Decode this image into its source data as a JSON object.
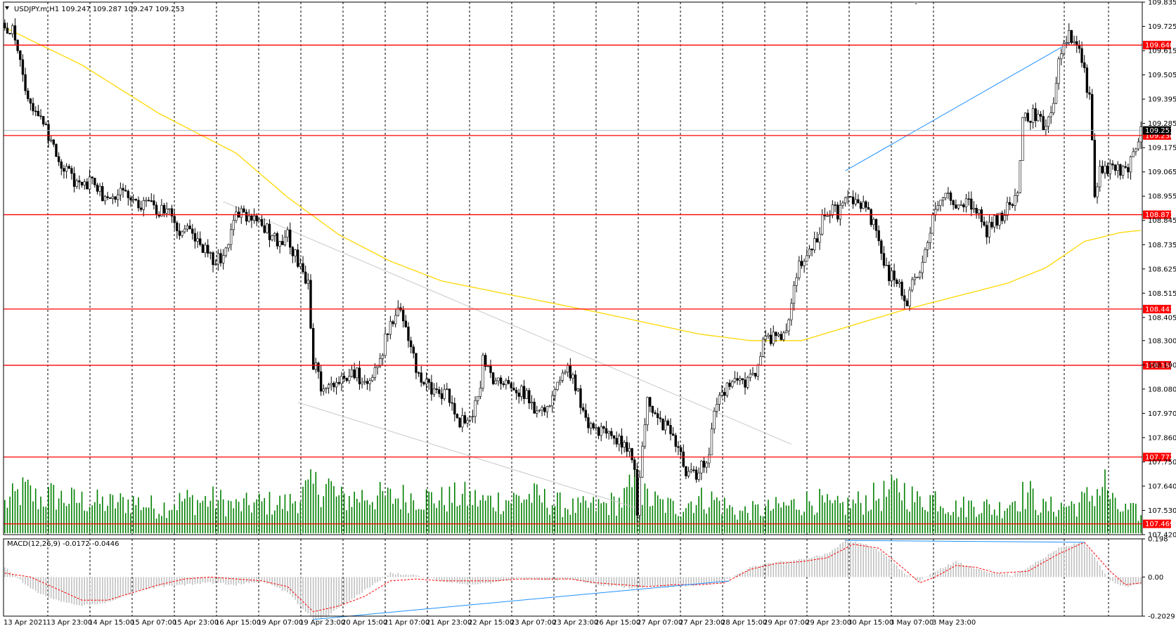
{
  "window": {
    "title": "USDJPY.m,H1  109.247 109.287 109.247 109.253"
  },
  "colors": {
    "grid": "#000000",
    "candle": "#000000",
    "level": "#ff0000",
    "ma": "#ffd700",
    "volume": "#008000",
    "trend": "#1e90ff",
    "channel": "#c8c8c8",
    "macd_hist": "#c0c0c0",
    "macd_signal": "#ff0000",
    "current_price": "#a9b8c8"
  },
  "chart_data": [
    {
      "type": "candlestick",
      "symbol": "USDJPY.m",
      "timeframe": "H1",
      "ohlc_header": "109.247 109.287 109.247 109.253",
      "current_price": 109.253,
      "current_price_label": "109.253",
      "ylim": [
        107.42,
        109.835
      ],
      "y_tick_labels": [
        "109.835",
        "109.725",
        "109.615",
        "109.505",
        "109.395",
        "109.285",
        "109.175",
        "109.065",
        "108.955",
        "108.845",
        "108.735",
        "108.625",
        "108.515",
        "108.405",
        "108.300",
        "108.190",
        "108.080",
        "107.970",
        "107.860",
        "107.750",
        "107.640",
        "107.530",
        "107.420"
      ],
      "x_tick_labels": [
        "13 Apr 2021",
        "13 Apr 23:00",
        "14 Apr 15:00",
        "15 Apr 07:00",
        "15 Apr 23:00",
        "16 Apr 15:00",
        "19 Apr 07:00",
        "19 Apr 23:00",
        "20 Apr 15:00",
        "21 Apr 07:00",
        "21 Apr 23:00",
        "22 Apr 15:00",
        "23 Apr 07:00",
        "23 Apr 23:00",
        "26 Apr 15:00",
        "27 Apr 07:00",
        "27 Apr 23:00",
        "28 Apr 15:00",
        "29 Apr 07:00",
        "29 Apr 23:00",
        "30 Apr 15:00",
        "3 May 07:00",
        "3 May 23:00"
      ],
      "price_levels": [
        {
          "value": 109.64,
          "label": "109.640"
        },
        {
          "value": 109.23,
          "label": "109.230"
        },
        {
          "value": 108.871,
          "label": "108.871"
        },
        {
          "value": 108.443,
          "label": "108.443"
        },
        {
          "value": 108.188,
          "label": "108.188"
        },
        {
          "value": 107.772,
          "label": "107.772"
        },
        {
          "value": 107.469,
          "label": "107.469"
        }
      ],
      "close_path": [
        [
          0,
          109.74
        ],
        [
          4,
          109.68
        ],
        [
          8,
          109.45
        ],
        [
          13,
          109.32
        ],
        [
          18,
          109.2
        ],
        [
          24,
          109.07
        ],
        [
          30,
          108.98
        ],
        [
          34,
          109.02
        ],
        [
          40,
          108.92
        ],
        [
          45,
          108.96
        ],
        [
          52,
          108.92
        ],
        [
          58,
          108.9
        ],
        [
          64,
          108.88
        ],
        [
          68,
          108.8
        ],
        [
          73,
          108.78
        ],
        [
          78,
          108.72
        ],
        [
          82,
          108.66
        ],
        [
          86,
          108.7
        ],
        [
          90,
          108.88
        ],
        [
          94,
          108.85
        ],
        [
          98,
          108.86
        ],
        [
          102,
          108.8
        ],
        [
          106,
          108.75
        ],
        [
          110,
          108.78
        ],
        [
          114,
          108.65
        ],
        [
          118,
          108.54
        ],
        [
          120,
          108.2
        ],
        [
          124,
          108.06
        ],
        [
          130,
          108.1
        ],
        [
          136,
          108.15
        ],
        [
          140,
          108.12
        ],
        [
          146,
          108.2
        ],
        [
          150,
          108.4
        ],
        [
          154,
          108.42
        ],
        [
          158,
          108.25
        ],
        [
          162,
          108.1
        ],
        [
          166,
          108.08
        ],
        [
          172,
          108.05
        ],
        [
          176,
          107.92
        ],
        [
          180,
          107.96
        ],
        [
          184,
          108.02
        ],
        [
          186,
          108.2
        ],
        [
          190,
          108.12
        ],
        [
          196,
          108.1
        ],
        [
          202,
          108.06
        ],
        [
          206,
          108.0
        ],
        [
          210,
          107.95
        ],
        [
          214,
          108.05
        ],
        [
          218,
          108.18
        ],
        [
          222,
          108.1
        ],
        [
          226,
          107.95
        ],
        [
          230,
          107.9
        ],
        [
          236,
          107.86
        ],
        [
          242,
          107.83
        ],
        [
          245,
          107.75
        ],
        [
          246,
          107.54
        ],
        [
          248,
          107.82
        ],
        [
          250,
          108.05
        ],
        [
          254,
          107.95
        ],
        [
          258,
          107.9
        ],
        [
          262,
          107.8
        ],
        [
          266,
          107.68
        ],
        [
          270,
          107.7
        ],
        [
          272,
          107.75
        ],
        [
          274,
          107.8
        ],
        [
          276,
          107.98
        ],
        [
          280,
          108.08
        ],
        [
          284,
          108.1
        ],
        [
          288,
          108.12
        ],
        [
          292,
          108.15
        ],
        [
          296,
          108.33
        ],
        [
          300,
          108.3
        ],
        [
          304,
          108.35
        ],
        [
          308,
          108.62
        ],
        [
          312,
          108.7
        ],
        [
          316,
          108.78
        ],
        [
          320,
          108.9
        ],
        [
          324,
          108.88
        ],
        [
          328,
          108.95
        ],
        [
          332,
          108.92
        ],
        [
          336,
          108.88
        ],
        [
          340,
          108.75
        ],
        [
          344,
          108.6
        ],
        [
          348,
          108.55
        ],
        [
          350,
          108.46
        ],
        [
          354,
          108.58
        ],
        [
          358,
          108.7
        ],
        [
          362,
          108.92
        ],
        [
          366,
          108.97
        ],
        [
          370,
          108.9
        ],
        [
          374,
          108.92
        ],
        [
          378,
          108.88
        ],
        [
          382,
          108.8
        ],
        [
          386,
          108.85
        ],
        [
          390,
          108.9
        ],
        [
          394,
          108.98
        ],
        [
          396,
          109.3
        ],
        [
          400,
          109.32
        ],
        [
          404,
          109.28
        ],
        [
          408,
          109.35
        ],
        [
          410,
          109.55
        ],
        [
          414,
          109.68
        ],
        [
          418,
          109.62
        ],
        [
          422,
          109.4
        ],
        [
          424,
          108.95
        ],
        [
          426,
          109.1
        ],
        [
          430,
          109.08
        ],
        [
          434,
          109.06
        ],
        [
          438,
          109.1
        ],
        [
          440,
          109.2
        ],
        [
          442,
          109.25
        ]
      ],
      "ma_path": [
        [
          0,
          109.72
        ],
        [
          30,
          109.55
        ],
        [
          60,
          109.33
        ],
        [
          90,
          109.15
        ],
        [
          110,
          108.95
        ],
        [
          130,
          108.78
        ],
        [
          150,
          108.66
        ],
        [
          170,
          108.57
        ],
        [
          200,
          108.5
        ],
        [
          230,
          108.43
        ],
        [
          250,
          108.38
        ],
        [
          270,
          108.33
        ],
        [
          290,
          108.3
        ],
        [
          310,
          108.3
        ],
        [
          330,
          108.37
        ],
        [
          350,
          108.44
        ],
        [
          370,
          108.5
        ],
        [
          390,
          108.56
        ],
        [
          405,
          108.63
        ],
        [
          420,
          108.75
        ],
        [
          434,
          108.79
        ],
        [
          442,
          108.8
        ]
      ],
      "trendlines": [
        {
          "color": "trend",
          "from": [
            327,
            109.07
          ],
          "to": [
            414,
            109.65
          ]
        },
        {
          "color": "channel",
          "from": [
            85,
            108.93
          ],
          "to": [
            306,
            107.83
          ]
        },
        {
          "color": "channel",
          "from": [
            114,
            108.02
          ],
          "to": [
            246,
            107.54
          ]
        }
      ],
      "volume_path": [
        [
          0,
          35
        ],
        [
          8,
          52
        ],
        [
          13,
          40
        ],
        [
          18,
          45
        ],
        [
          25,
          40
        ],
        [
          33,
          38
        ],
        [
          40,
          35
        ],
        [
          50,
          38
        ],
        [
          60,
          30
        ],
        [
          70,
          40
        ],
        [
          75,
          38
        ],
        [
          82,
          40
        ],
        [
          90,
          32
        ],
        [
          100,
          36
        ],
        [
          110,
          35
        ],
        [
          120,
          55
        ],
        [
          126,
          58
        ],
        [
          130,
          40
        ],
        [
          140,
          45
        ],
        [
          150,
          42
        ],
        [
          160,
          44
        ],
        [
          170,
          40
        ],
        [
          178,
          44
        ],
        [
          186,
          38
        ],
        [
          195,
          40
        ],
        [
          205,
          44
        ],
        [
          215,
          35
        ],
        [
          222,
          30
        ],
        [
          232,
          33
        ],
        [
          240,
          38
        ],
        [
          245,
          58
        ],
        [
          246,
          72
        ],
        [
          248,
          45
        ],
        [
          255,
          35
        ],
        [
          262,
          30
        ],
        [
          268,
          40
        ],
        [
          276,
          40
        ],
        [
          285,
          25
        ],
        [
          295,
          28
        ],
        [
          305,
          33
        ],
        [
          315,
          40
        ],
        [
          322,
          30
        ],
        [
          330,
          35
        ],
        [
          338,
          42
        ],
        [
          345,
          48
        ],
        [
          348,
          55
        ],
        [
          355,
          38
        ],
        [
          362,
          44
        ],
        [
          370,
          30
        ],
        [
          378,
          35
        ],
        [
          386,
          28
        ],
        [
          392,
          40
        ],
        [
          398,
          48
        ],
        [
          404,
          30
        ],
        [
          410,
          32
        ],
        [
          418,
          35
        ],
        [
          424,
          48
        ],
        [
          428,
          60
        ],
        [
          432,
          30
        ],
        [
          440,
          25
        ],
        [
          442,
          20
        ]
      ],
      "volume_max": 80
    },
    {
      "type": "histogram",
      "indicator": "MACD(12,26,9) -0.0172 -0.0446",
      "header": "MACD(12,26,9) -0.0172 -0.0446",
      "ylim": [
        -0.2029,
        0.198
      ],
      "y_tick_labels": [
        "0.198",
        "0.00",
        "-0.2029"
      ],
      "histogram_path": [
        [
          0,
          0.05
        ],
        [
          10,
          -0.06
        ],
        [
          20,
          -0.12
        ],
        [
          30,
          -0.15
        ],
        [
          40,
          -0.13
        ],
        [
          50,
          -0.08
        ],
        [
          60,
          -0.05
        ],
        [
          70,
          -0.04
        ],
        [
          80,
          -0.03
        ],
        [
          90,
          -0.04
        ],
        [
          100,
          -0.02
        ],
        [
          110,
          -0.08
        ],
        [
          120,
          -0.22
        ],
        [
          125,
          -0.21
        ],
        [
          130,
          -0.16
        ],
        [
          140,
          -0.07
        ],
        [
          150,
          0.02
        ],
        [
          160,
          0.01
        ],
        [
          170,
          -0.02
        ],
        [
          180,
          -0.04
        ],
        [
          190,
          -0.03
        ],
        [
          200,
          -0.01
        ],
        [
          210,
          -0.02
        ],
        [
          220,
          -0.01
        ],
        [
          230,
          -0.04
        ],
        [
          240,
          -0.05
        ],
        [
          245,
          -0.06
        ],
        [
          250,
          -0.05
        ],
        [
          260,
          -0.05
        ],
        [
          270,
          -0.04
        ],
        [
          280,
          -0.02
        ],
        [
          290,
          0.05
        ],
        [
          300,
          0.08
        ],
        [
          310,
          0.09
        ],
        [
          320,
          0.12
        ],
        [
          327,
          0.19
        ],
        [
          335,
          0.17
        ],
        [
          342,
          0.12
        ],
        [
          350,
          0.02
        ],
        [
          356,
          -0.02
        ],
        [
          362,
          0.03
        ],
        [
          370,
          0.08
        ],
        [
          378,
          0.04
        ],
        [
          386,
          0.02
        ],
        [
          392,
          0.01
        ],
        [
          398,
          0.05
        ],
        [
          404,
          0.1
        ],
        [
          410,
          0.15
        ],
        [
          416,
          0.17
        ],
        [
          420,
          0.18
        ],
        [
          424,
          0.1
        ],
        [
          430,
          -0.02
        ],
        [
          436,
          -0.05
        ],
        [
          442,
          -0.04
        ]
      ],
      "signal_path": [
        [
          0,
          0.02
        ],
        [
          10,
          0.0
        ],
        [
          20,
          -0.06
        ],
        [
          30,
          -0.12
        ],
        [
          40,
          -0.12
        ],
        [
          50,
          -0.08
        ],
        [
          60,
          -0.04
        ],
        [
          70,
          -0.01
        ],
        [
          80,
          0.0
        ],
        [
          90,
          -0.01
        ],
        [
          100,
          -0.02
        ],
        [
          110,
          -0.05
        ],
        [
          120,
          -0.18
        ],
        [
          130,
          -0.15
        ],
        [
          140,
          -0.1
        ],
        [
          150,
          -0.02
        ],
        [
          160,
          -0.01
        ],
        [
          170,
          -0.02
        ],
        [
          180,
          -0.02
        ],
        [
          190,
          -0.02
        ],
        [
          200,
          -0.01
        ],
        [
          210,
          -0.01
        ],
        [
          220,
          -0.01
        ],
        [
          230,
          -0.03
        ],
        [
          240,
          -0.04
        ],
        [
          250,
          -0.05
        ],
        [
          260,
          -0.04
        ],
        [
          270,
          -0.04
        ],
        [
          280,
          -0.03
        ],
        [
          290,
          0.04
        ],
        [
          300,
          0.07
        ],
        [
          310,
          0.08
        ],
        [
          320,
          0.1
        ],
        [
          330,
          0.17
        ],
        [
          340,
          0.15
        ],
        [
          350,
          0.04
        ],
        [
          356,
          -0.03
        ],
        [
          362,
          0.0
        ],
        [
          370,
          0.06
        ],
        [
          378,
          0.05
        ],
        [
          386,
          0.02
        ],
        [
          398,
          0.03
        ],
        [
          410,
          0.12
        ],
        [
          420,
          0.18
        ],
        [
          430,
          0.03
        ],
        [
          436,
          -0.04
        ],
        [
          442,
          -0.03
        ]
      ],
      "trendlines": [
        {
          "from": [
            120,
            -0.22
          ],
          "to": [
            282,
            -0.02
          ]
        },
        {
          "from": [
            327,
            0.19
          ],
          "to": [
            420,
            0.18
          ]
        }
      ]
    }
  ]
}
